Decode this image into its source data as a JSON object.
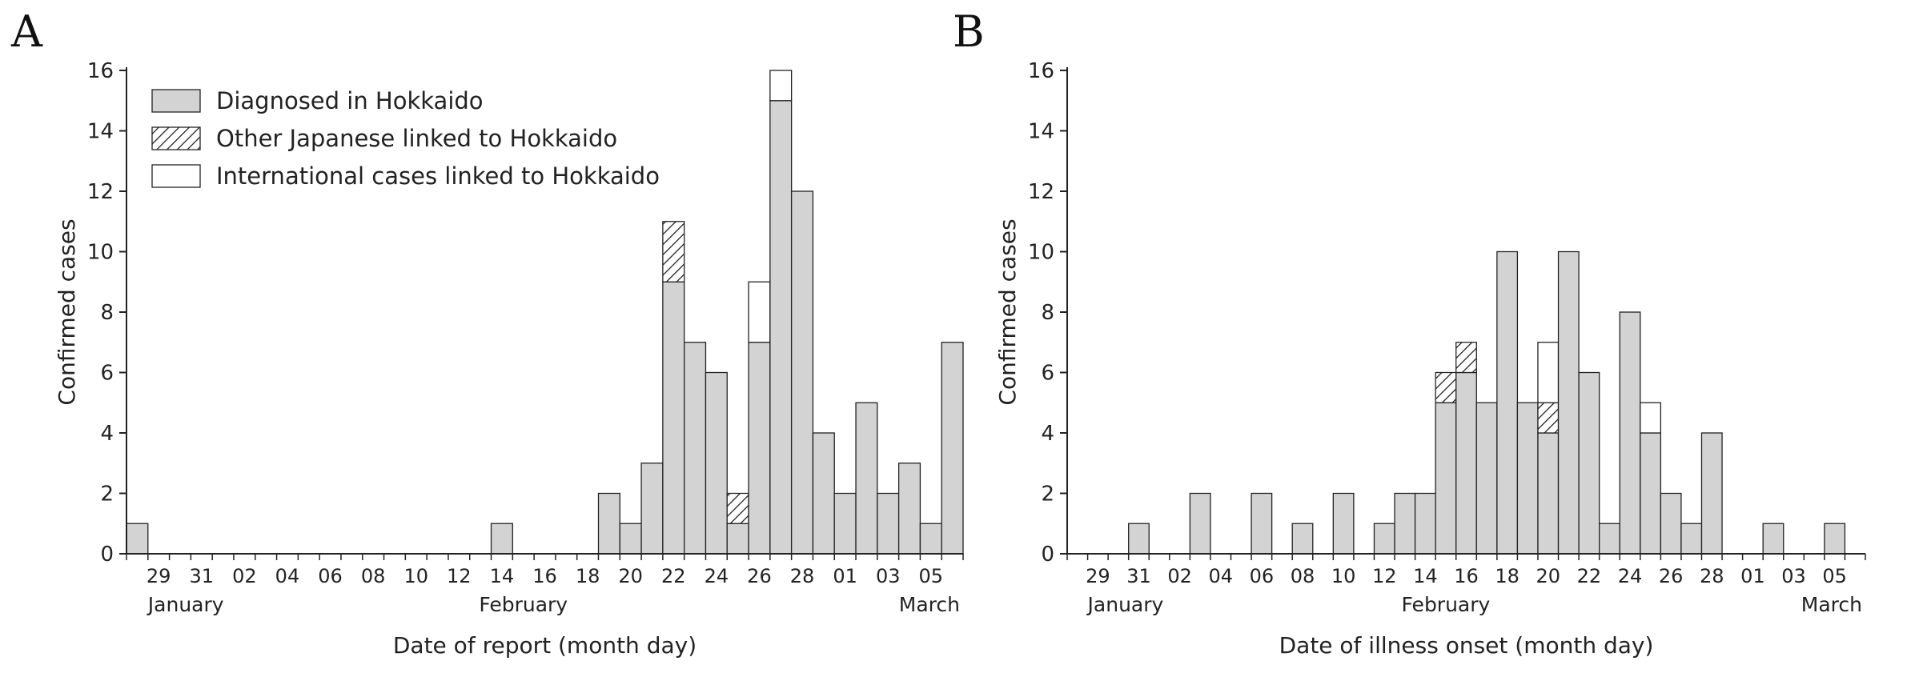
{
  "colors": {
    "fill": "#d3d3d3",
    "edge": "#222222",
    "background": "#ffffff"
  },
  "legend": {
    "placement": "top-left",
    "items": [
      {
        "label": "Diagnosed in Hokkaido",
        "style": "gray"
      },
      {
        "label": "Other Japanese linked to Hokkaido",
        "style": "hatch"
      },
      {
        "label": "International cases linked to Hokkaido",
        "style": "white"
      }
    ]
  },
  "chart_data": [
    {
      "panel": "A",
      "type": "bar",
      "stacked": true,
      "xlabel": "Date of report (month day)",
      "ylabel": "Confirmed cases",
      "ylim": [
        0,
        16
      ],
      "yticks": [
        0,
        2,
        4,
        6,
        8,
        10,
        12,
        14,
        16
      ],
      "categories": [
        "01-28",
        "01-29",
        "01-30",
        "01-31",
        "02-01",
        "02-02",
        "02-03",
        "02-04",
        "02-05",
        "02-06",
        "02-07",
        "02-08",
        "02-09",
        "02-10",
        "02-11",
        "02-12",
        "02-13",
        "02-14",
        "02-15",
        "02-16",
        "02-17",
        "02-18",
        "02-19",
        "02-20",
        "02-21",
        "02-22",
        "02-23",
        "02-24",
        "02-25",
        "02-26",
        "02-27",
        "02-28",
        "02-29",
        "03-01",
        "03-02",
        "03-03",
        "03-04",
        "03-05",
        "03-06"
      ],
      "tick_labels": [
        "29",
        "31",
        "02",
        "04",
        "06",
        "08",
        "10",
        "12",
        "14",
        "16",
        "18",
        "20",
        "22",
        "24",
        "26",
        "28",
        "01",
        "03",
        "05"
      ],
      "month_labels": [
        "January",
        "February",
        "March"
      ],
      "series": [
        {
          "name": "Diagnosed in Hokkaido",
          "values": [
            1,
            0,
            0,
            0,
            0,
            0,
            0,
            0,
            0,
            0,
            0,
            0,
            0,
            0,
            0,
            0,
            0,
            1,
            0,
            0,
            0,
            0,
            2,
            1,
            3,
            9,
            7,
            6,
            1,
            7,
            15,
            12,
            4,
            2,
            5,
            2,
            3,
            1,
            7
          ]
        },
        {
          "name": "Other Japanese linked to Hokkaido",
          "values": [
            0,
            0,
            0,
            0,
            0,
            0,
            0,
            0,
            0,
            0,
            0,
            0,
            0,
            0,
            0,
            0,
            0,
            0,
            0,
            0,
            0,
            0,
            0,
            0,
            0,
            2,
            0,
            0,
            1,
            0,
            0,
            0,
            0,
            0,
            0,
            0,
            0,
            0,
            0
          ]
        },
        {
          "name": "International cases linked to Hokkaido",
          "values": [
            0,
            0,
            0,
            0,
            0,
            0,
            0,
            0,
            0,
            0,
            0,
            0,
            0,
            0,
            0,
            0,
            0,
            0,
            0,
            0,
            0,
            0,
            0,
            0,
            0,
            0,
            0,
            0,
            0,
            2,
            1,
            0,
            0,
            0,
            0,
            0,
            0,
            0,
            0
          ]
        }
      ]
    },
    {
      "panel": "B",
      "type": "bar",
      "stacked": true,
      "xlabel": "Date of illness onset (month day)",
      "ylabel": "Confirmed cases",
      "ylim": [
        0,
        16
      ],
      "yticks": [
        0,
        2,
        4,
        6,
        8,
        10,
        12,
        14,
        16
      ],
      "categories": [
        "01-28",
        "01-29",
        "01-30",
        "01-31",
        "02-01",
        "02-02",
        "02-03",
        "02-04",
        "02-05",
        "02-06",
        "02-07",
        "02-08",
        "02-09",
        "02-10",
        "02-11",
        "02-12",
        "02-13",
        "02-14",
        "02-15",
        "02-16",
        "02-17",
        "02-18",
        "02-19",
        "02-20",
        "02-21",
        "02-22",
        "02-23",
        "02-24",
        "02-25",
        "02-26",
        "02-27",
        "02-28",
        "02-29",
        "03-01",
        "03-02",
        "03-03",
        "03-04",
        "03-05",
        "03-06"
      ],
      "tick_labels": [
        "29",
        "31",
        "02",
        "04",
        "06",
        "08",
        "10",
        "12",
        "14",
        "16",
        "18",
        "20",
        "22",
        "24",
        "26",
        "28",
        "01",
        "03",
        "05"
      ],
      "month_labels": [
        "January",
        "February",
        "March"
      ],
      "series": [
        {
          "name": "Diagnosed in Hokkaido",
          "values": [
            0,
            0,
            0,
            1,
            0,
            0,
            2,
            0,
            0,
            2,
            0,
            1,
            0,
            2,
            0,
            1,
            2,
            2,
            5,
            6,
            5,
            10,
            5,
            4,
            10,
            6,
            1,
            8,
            4,
            2,
            1,
            4,
            0,
            0,
            1,
            0,
            0,
            1,
            0
          ]
        },
        {
          "name": "Other Japanese linked to Hokkaido",
          "values": [
            0,
            0,
            0,
            0,
            0,
            0,
            0,
            0,
            0,
            0,
            0,
            0,
            0,
            0,
            0,
            0,
            0,
            0,
            1,
            1,
            0,
            0,
            0,
            1,
            0,
            0,
            0,
            0,
            0,
            0,
            0,
            0,
            0,
            0,
            0,
            0,
            0,
            0,
            0
          ]
        },
        {
          "name": "International cases linked to Hokkaido",
          "values": [
            0,
            0,
            0,
            0,
            0,
            0,
            0,
            0,
            0,
            0,
            0,
            0,
            0,
            0,
            0,
            0,
            0,
            0,
            0,
            0,
            0,
            0,
            0,
            2,
            0,
            0,
            0,
            0,
            1,
            0,
            0,
            0,
            0,
            0,
            0,
            0,
            0,
            0,
            0
          ]
        }
      ]
    }
  ]
}
